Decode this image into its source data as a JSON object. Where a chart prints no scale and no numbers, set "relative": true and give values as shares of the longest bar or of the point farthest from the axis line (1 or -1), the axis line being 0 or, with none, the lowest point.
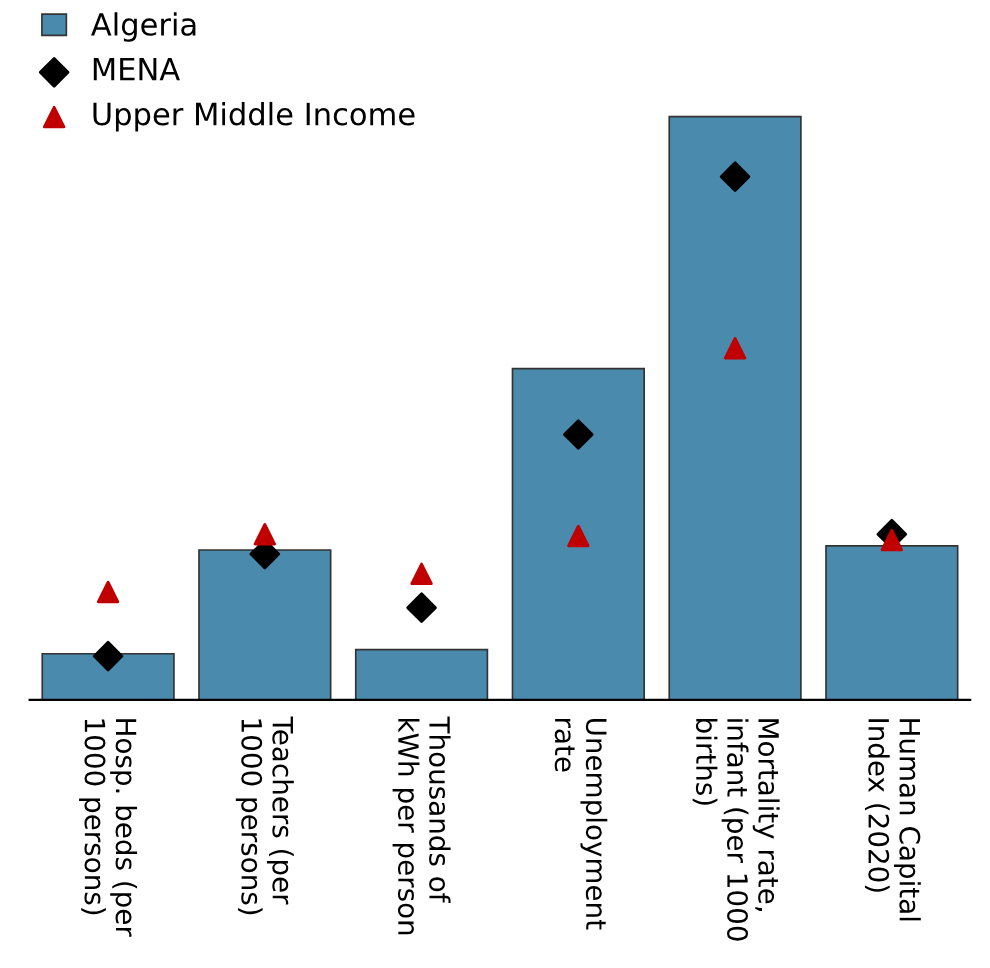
{
  "chart_data": {
    "type": "bar",
    "relative": true,
    "categories": [
      "Hosp. beds (per\n1000 persons)",
      "Teachers (per\n1000 persons)",
      "Thousands of\nkWh per person",
      "Unemployment\nrate",
      "Mortality rate,\ninfant (per 1000\nbirths)",
      "Human Capital\nIndex (2020)"
    ],
    "series": [
      {
        "name": "Algeria",
        "color": "#4a8aad",
        "values": [
          0.079,
          0.257,
          0.086,
          0.568,
          1.0,
          0.264
        ]
      },
      {
        "name": "MENA",
        "type": "scatter",
        "marker": "diamond",
        "color": "#000000",
        "values": [
          0.075,
          0.25,
          0.158,
          0.455,
          0.897,
          0.284
        ]
      },
      {
        "name": "Upper Middle Income",
        "type": "scatter",
        "marker": "triangle",
        "color": "#c00000",
        "values": [
          0.185,
          0.284,
          0.216,
          0.281,
          0.603,
          0.274
        ]
      }
    ],
    "legend": "top left",
    "grid": false
  }
}
